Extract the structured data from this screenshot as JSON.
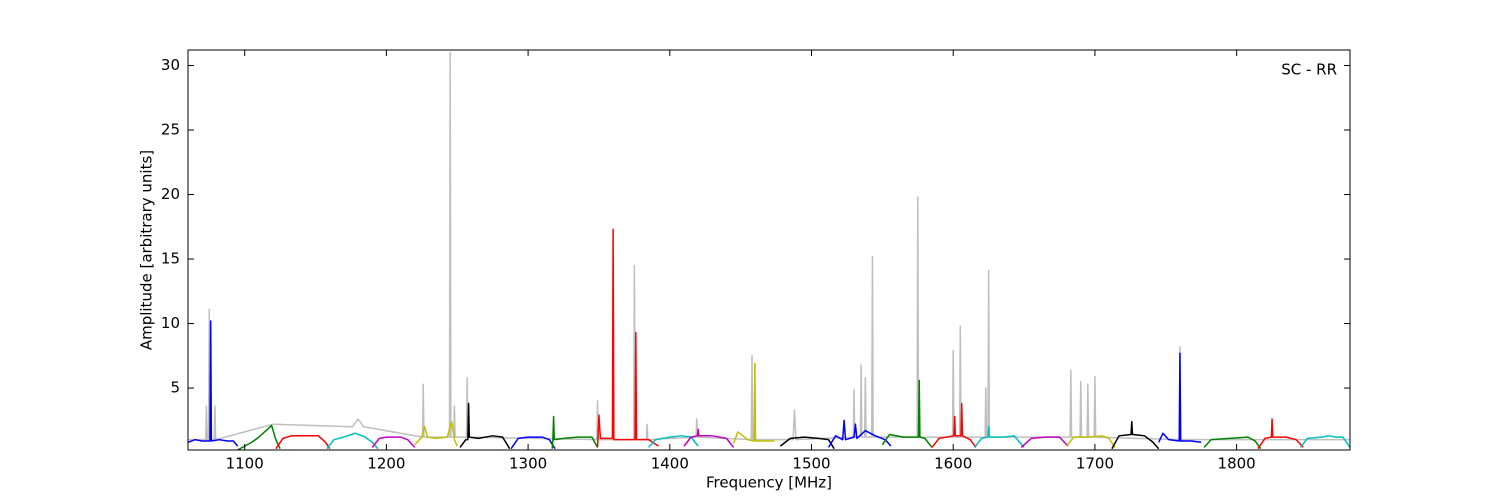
{
  "chart_data": {
    "type": "line",
    "x_label": "Frequency [MHz]",
    "y_label": "Amplitude [arbitrary units]",
    "annotation": "SC - RR",
    "xlim": [
      1060,
      1880
    ],
    "xticks": [
      1100,
      1200,
      1300,
      1400,
      1500,
      1600,
      1700,
      1800
    ],
    "ylim": [
      0.2,
      31.2
    ],
    "yticks": [
      5,
      10,
      15,
      20,
      25,
      30
    ],
    "series": [
      {
        "color": "#bfbfbf",
        "x": [
          1060,
          1072.5,
          1073,
          1073.5,
          1074.5,
          1075,
          1075.5,
          1078.5,
          1079,
          1079.5,
          1120,
          1176,
          1180,
          1184,
          1225.5,
          1226,
          1226.5,
          1244.5,
          1245,
          1245.5,
          1247.5,
          1248,
          1248.5,
          1256.5,
          1257,
          1257.5,
          1348.5,
          1349,
          1349.5,
          1374.5,
          1375,
          1375.5,
          1383.5,
          1384,
          1384.5,
          1418.5,
          1419,
          1419.5,
          1457.5,
          1458,
          1458.5,
          1487,
          1488,
          1489,
          1529.5,
          1530,
          1530.5,
          1534.5,
          1535,
          1535.5,
          1537.5,
          1538,
          1538.5,
          1542.5,
          1543,
          1543.5,
          1574.5,
          1575,
          1575.5,
          1599.5,
          1600,
          1600.5,
          1604.5,
          1605,
          1605.5,
          1622.5,
          1623,
          1623.5,
          1624.5,
          1625,
          1625.5,
          1682.5,
          1683,
          1683.5,
          1689.5,
          1690,
          1690.5,
          1694.5,
          1695,
          1695.5,
          1699.5,
          1700,
          1700.5,
          1759.5,
          1760,
          1760.5,
          1880
        ],
        "values": [
          1.0,
          1.0,
          3.6,
          1.0,
          1.0,
          11.1,
          1.0,
          1.0,
          3.6,
          1.0,
          2.2,
          2.0,
          2.6,
          2.0,
          1.2,
          5.3,
          1.2,
          1.2,
          31,
          1.2,
          1.2,
          3.6,
          1.2,
          1.2,
          5.8,
          1.2,
          1.0,
          4.0,
          1.0,
          1.0,
          14.5,
          1.0,
          1.0,
          2.2,
          1.0,
          1.2,
          2.6,
          1.2,
          1.0,
          7.5,
          1.0,
          1.0,
          3.3,
          1.0,
          1.2,
          4.9,
          1.2,
          1.2,
          6.8,
          1.2,
          1.2,
          5.8,
          1.2,
          1.2,
          15.2,
          1.2,
          1.2,
          19.8,
          1.2,
          1.2,
          7.9,
          1.2,
          1.2,
          9.8,
          1.2,
          1.2,
          5.0,
          1.2,
          1.2,
          14.1,
          1.2,
          1.2,
          6.4,
          1.2,
          1.2,
          5.5,
          1.2,
          1.2,
          5.3,
          1.2,
          1.2,
          5.9,
          1.2,
          1.0,
          8.2,
          1.0,
          1.0
        ]
      },
      {
        "color": "#0000ff",
        "x": [
          1060,
          1065,
          1070,
          1075.5,
          1076,
          1076.5,
          1082,
          1088,
          1092,
          1095
        ],
        "values": [
          0.8,
          1.0,
          0.9,
          0.9,
          10.2,
          0.9,
          1.0,
          0.9,
          0.9,
          0.5
        ]
      },
      {
        "color": "#008000",
        "x": [
          1095,
          1100,
          1105,
          1110,
          1115,
          1119,
          1122,
          1125
        ],
        "values": [
          0.2,
          0.5,
          0.8,
          1.2,
          1.7,
          2.1,
          1.0,
          0.3
        ]
      },
      {
        "color": "#ff0000",
        "x": [
          1122,
          1127,
          1133,
          1145,
          1152,
          1157,
          1160
        ],
        "values": [
          0.3,
          1.1,
          1.3,
          1.3,
          1.3,
          0.8,
          0.3
        ]
      },
      {
        "color": "#00bfbf",
        "x": [
          1158,
          1163,
          1170,
          1178,
          1185,
          1190,
          1194
        ],
        "values": [
          0.3,
          1.0,
          1.2,
          1.5,
          1.2,
          0.8,
          0.3
        ]
      },
      {
        "color": "#bf00bf",
        "x": [
          1190,
          1195,
          1200,
          1210,
          1215,
          1220
        ],
        "values": [
          0.4,
          1.1,
          1.2,
          1.2,
          1.0,
          0.4
        ]
      },
      {
        "color": "#bfbf00",
        "x": [
          1220,
          1225,
          1227,
          1229,
          1235,
          1243,
          1246,
          1248,
          1250
        ],
        "values": [
          0.6,
          1.2,
          2.0,
          1.2,
          1.1,
          1.2,
          2.4,
          1.0,
          0.5
        ]
      },
      {
        "color": "#000000",
        "x": [
          1252,
          1256,
          1257.5,
          1258,
          1258.5,
          1265,
          1275,
          1282,
          1287
        ],
        "values": [
          0.4,
          1.0,
          1.0,
          3.8,
          1.2,
          1.1,
          1.3,
          1.2,
          0.3
        ]
      },
      {
        "color": "#0000ff",
        "x": [
          1288,
          1293,
          1300,
          1310,
          1315,
          1319
        ],
        "values": [
          0.3,
          1.1,
          1.2,
          1.2,
          1.0,
          0.3
        ]
      },
      {
        "color": "#008000",
        "x": [
          1317,
          1317.5,
          1318,
          1318.5,
          1325,
          1335,
          1345,
          1349
        ],
        "values": [
          0.3,
          1.0,
          2.8,
          1.0,
          1.1,
          1.2,
          1.2,
          0.4
        ]
      },
      {
        "color": "#ff0000",
        "x": [
          1349,
          1350,
          1351,
          1355,
          1359.5,
          1360,
          1360.5,
          1368,
          1375.5,
          1376,
          1376.5,
          1385,
          1392
        ],
        "values": [
          0.4,
          2.9,
          1.1,
          1.1,
          1.1,
          17.3,
          1.0,
          1.0,
          1.0,
          9.3,
          1.0,
          1.0,
          0.5
        ]
      },
      {
        "color": "#00bfbf",
        "x": [
          1385,
          1390,
          1400,
          1408,
          1415,
          1420
        ],
        "values": [
          0.4,
          1.0,
          1.2,
          1.3,
          1.2,
          0.5
        ]
      },
      {
        "color": "#bf00bf",
        "x": [
          1410,
          1415,
          1419.5,
          1420,
          1420.5,
          1430,
          1440,
          1445
        ],
        "values": [
          0.5,
          1.2,
          1.3,
          1.8,
          1.3,
          1.3,
          1.1,
          0.4
        ]
      },
      {
        "color": "#bfbf00",
        "x": [
          1445,
          1448,
          1455,
          1459.5,
          1460,
          1460.5,
          1466,
          1474
        ],
        "values": [
          0.7,
          1.6,
          1.0,
          0.9,
          6.9,
          0.9,
          0.9,
          0.9
        ]
      },
      {
        "color": "#000000",
        "x": [
          1478,
          1485,
          1495,
          1505,
          1512,
          1516
        ],
        "values": [
          0.5,
          1.1,
          1.2,
          1.1,
          1.0,
          0.3
        ]
      },
      {
        "color": "#0000ff",
        "x": [
          1512,
          1517,
          1522,
          1523,
          1524,
          1530,
          1531,
          1532,
          1538,
          1545,
          1552,
          1556
        ],
        "values": [
          0.4,
          1.3,
          1.0,
          2.5,
          1.0,
          1.2,
          2.2,
          1.1,
          1.7,
          1.3,
          1.0,
          0.5
        ]
      },
      {
        "color": "#008000",
        "x": [
          1550,
          1555,
          1565,
          1575.5,
          1576,
          1576.5,
          1580,
          1585
        ],
        "values": [
          0.6,
          1.4,
          1.2,
          1.2,
          5.6,
          1.2,
          1.1,
          0.4
        ]
      },
      {
        "color": "#ff0000",
        "x": [
          1585,
          1590,
          1600.5,
          1601,
          1601.5,
          1605.5,
          1606,
          1606.5,
          1612,
          1616
        ],
        "values": [
          0.4,
          1.1,
          1.3,
          2.8,
          1.3,
          1.3,
          3.8,
          1.3,
          1.0,
          0.4
        ]
      },
      {
        "color": "#00bfbf",
        "x": [
          1615,
          1620,
          1624.5,
          1625,
          1625.5,
          1635,
          1643,
          1650
        ],
        "values": [
          0.4,
          1.1,
          1.2,
          2.0,
          1.2,
          1.2,
          1.3,
          0.4
        ]
      },
      {
        "color": "#bf00bf",
        "x": [
          1648,
          1655,
          1665,
          1675,
          1681
        ],
        "values": [
          0.4,
          1.1,
          1.2,
          1.2,
          0.5
        ]
      },
      {
        "color": "#bfbf00",
        "x": [
          1680,
          1685,
          1695,
          1705,
          1710,
          1714
        ],
        "values": [
          0.5,
          1.2,
          1.2,
          1.3,
          1.1,
          0.4
        ]
      },
      {
        "color": "#000000",
        "x": [
          1712,
          1717,
          1725.5,
          1726,
          1726.5,
          1735,
          1741,
          1745
        ],
        "values": [
          0.3,
          1.3,
          1.4,
          2.4,
          1.4,
          1.3,
          0.8,
          0.3
        ]
      },
      {
        "color": "#0000ff",
        "x": [
          1745,
          1748,
          1752,
          1759.5,
          1760,
          1760.5,
          1768,
          1775
        ],
        "values": [
          0.8,
          1.5,
          1.0,
          0.9,
          7.7,
          0.9,
          0.9,
          0.8
        ]
      },
      {
        "color": "#008000",
        "x": [
          1777,
          1782,
          1795,
          1808,
          1813,
          1817
        ],
        "values": [
          0.4,
          1.0,
          1.1,
          1.2,
          0.9,
          0.3
        ]
      },
      {
        "color": "#ff0000",
        "x": [
          1815,
          1820,
          1824.5,
          1825,
          1825.5,
          1835,
          1842,
          1847
        ],
        "values": [
          0.3,
          1.1,
          1.2,
          2.6,
          1.2,
          1.2,
          1.0,
          0.4
        ]
      },
      {
        "color": "#00bfbf",
        "x": [
          1845,
          1850,
          1860,
          1865,
          1870,
          1875,
          1880
        ],
        "values": [
          0.4,
          1.1,
          1.2,
          1.3,
          1.2,
          1.2,
          0.4
        ]
      }
    ]
  }
}
